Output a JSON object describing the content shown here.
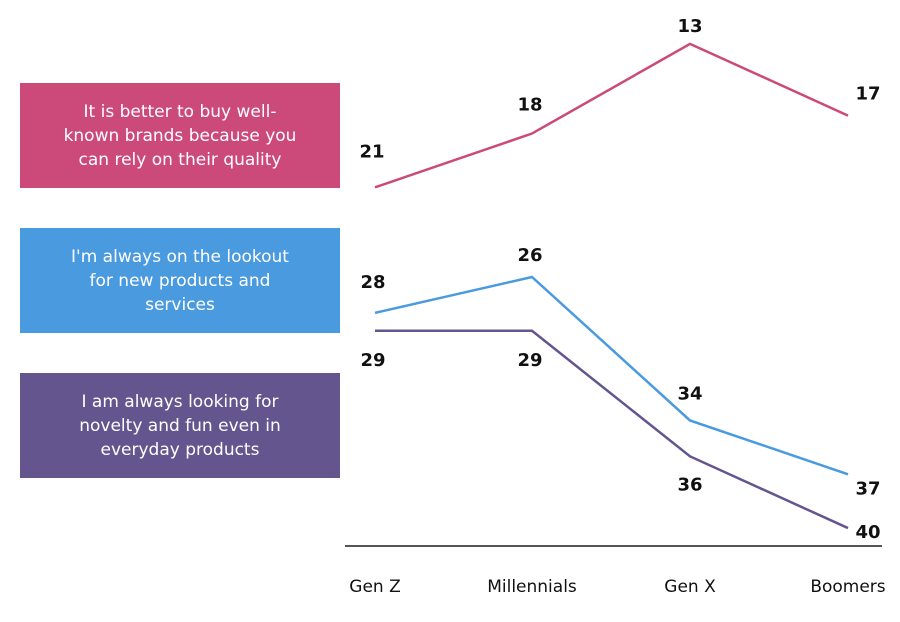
{
  "chart_data": {
    "type": "line",
    "categories": [
      "Gen Z",
      "Millennials",
      "Gen X",
      "Boomers"
    ],
    "series": [
      {
        "name": "It is better to buy well-known brands because you can rely on their quality",
        "color": "#cc4a7a",
        "values": [
          21,
          18,
          13,
          17
        ]
      },
      {
        "name": "I'm always on the lookout for new products and services",
        "color": "#4a9ae0",
        "values": [
          28,
          26,
          34,
          37
        ]
      },
      {
        "name": "I am always looking for novelty and fun even in everyday products",
        "color": "#65558f",
        "values": [
          29,
          29,
          36,
          40
        ]
      }
    ],
    "ylim": [
      11,
      41
    ],
    "y_inverted": true,
    "legend": "left"
  }
}
